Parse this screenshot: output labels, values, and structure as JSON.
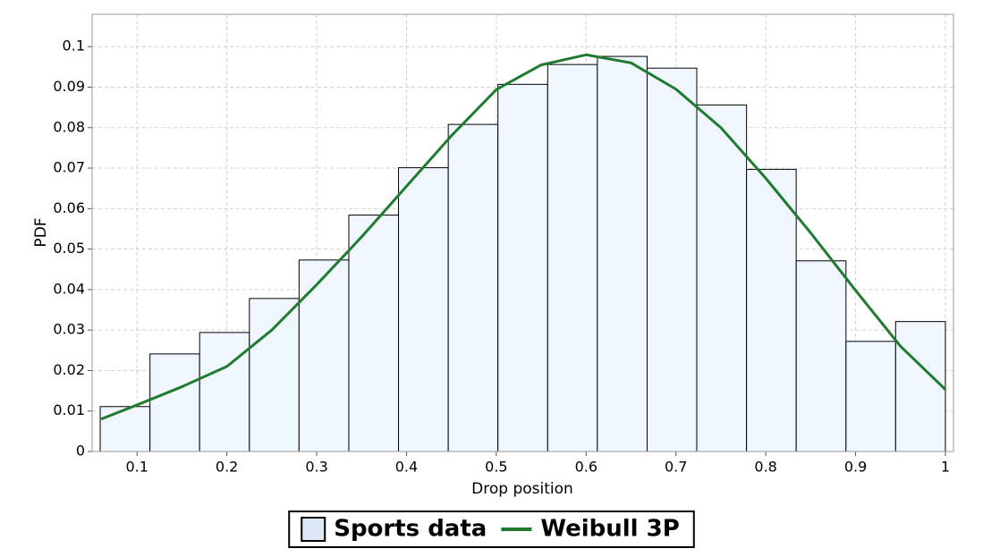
{
  "chart_data": {
    "type": "histogram",
    "x_label": "Drop position",
    "y_label": "PDF",
    "xlim": [
      0.05,
      1.009
    ],
    "ylim": [
      0,
      0.108
    ],
    "xticks": [
      0.1,
      0.2,
      0.3,
      0.4,
      0.5,
      0.6,
      0.7,
      0.8,
      0.9,
      1
    ],
    "yticks": [
      0,
      0.01,
      0.02,
      0.03,
      0.04,
      0.05,
      0.06,
      0.07,
      0.08,
      0.09,
      0.1
    ],
    "grid": true,
    "legend": "bottom",
    "bins": [
      0.059,
      0.1144,
      0.1697,
      0.2251,
      0.2804,
      0.3358,
      0.3911,
      0.4465,
      0.5018,
      0.5572,
      0.6125,
      0.6679,
      0.7232,
      0.7786,
      0.8339,
      0.8893,
      0.9446,
      1.0
    ],
    "series": [
      {
        "name": "Sports data",
        "type": "histogram",
        "color": "#f0f6fd",
        "edgecolor": "#000000",
        "values": [
          0.0111,
          0.0241,
          0.0294,
          0.0378,
          0.0473,
          0.0584,
          0.0701,
          0.0808,
          0.0907,
          0.0956,
          0.0976,
          0.0947,
          0.0856,
          0.0697,
          0.0471,
          0.0272,
          0.0321
        ]
      },
      {
        "name": "Weibull 3P",
        "type": "line",
        "color": "#1e7b30",
        "x": [
          0.06,
          0.1,
          0.15,
          0.2,
          0.25,
          0.3,
          0.35,
          0.4,
          0.45,
          0.5,
          0.55,
          0.6,
          0.65,
          0.7,
          0.75,
          0.8,
          0.85,
          0.9,
          0.95,
          1.0
        ],
        "values": [
          0.008,
          0.0115,
          0.016,
          0.021,
          0.03,
          0.0412,
          0.053,
          0.0655,
          0.078,
          0.0894,
          0.0955,
          0.098,
          0.096,
          0.0895,
          0.08,
          0.0675,
          0.054,
          0.0398,
          0.026,
          0.0153
        ]
      }
    ]
  }
}
